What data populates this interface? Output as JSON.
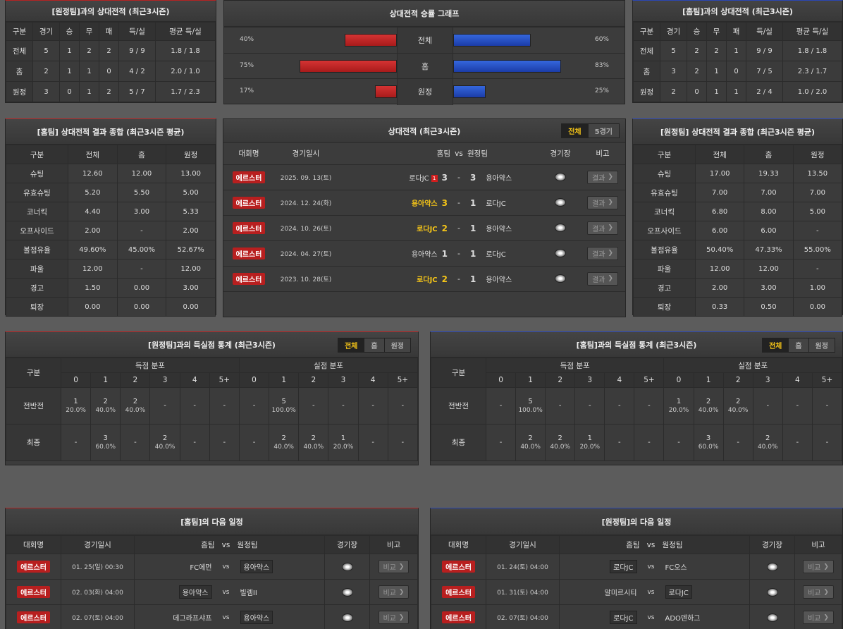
{
  "top_left": {
    "title": "[원정팀]과의 상대전적 (최근3시즌)",
    "headers": [
      "구분",
      "경기",
      "승",
      "무",
      "패",
      "득/실",
      "평균 득/실"
    ],
    "rows": [
      [
        "전체",
        "5",
        "1",
        "2",
        "2",
        "9 / 9",
        "1.8 / 1.8"
      ],
      [
        "홈",
        "2",
        "1",
        "1",
        "0",
        "4 / 2",
        "2.0 / 1.0"
      ],
      [
        "원정",
        "3",
        "0",
        "1",
        "2",
        "5 / 7",
        "1.7 / 2.3"
      ]
    ]
  },
  "graph": {
    "title": "상대전적 승률 그래프",
    "rows": [
      {
        "label": "전체",
        "left_pct": "40%",
        "right_pct": "60%",
        "left": 0.4,
        "right": 0.6
      },
      {
        "label": "홈",
        "left_pct": "75%",
        "right_pct": "83%",
        "left": 0.75,
        "right": 0.83
      },
      {
        "label": "원정",
        "left_pct": "17%",
        "right_pct": "25%",
        "left": 0.17,
        "right": 0.25
      }
    ]
  },
  "top_right": {
    "title": "[홈팀]과의 상대전적 (최근3시즌)",
    "headers": [
      "구분",
      "경기",
      "승",
      "무",
      "패",
      "득/실",
      "평균 득/실"
    ],
    "rows": [
      [
        "전체",
        "5",
        "2",
        "2",
        "1",
        "9 / 9",
        "1.8 / 1.8"
      ],
      [
        "홈",
        "3",
        "2",
        "1",
        "0",
        "7 / 5",
        "2.3 / 1.7"
      ],
      [
        "원정",
        "2",
        "0",
        "1",
        "1",
        "2 / 4",
        "1.0 / 2.0"
      ]
    ]
  },
  "mid_left": {
    "title": "[홈팀] 상대전적 결과 종합 (최근3시즌 평균)",
    "headers": [
      "구분",
      "전체",
      "홈",
      "원정"
    ],
    "rows": [
      [
        "슈팅",
        "12.60",
        "12.00",
        "13.00"
      ],
      [
        "유효슈팅",
        "5.20",
        "5.50",
        "5.00"
      ],
      [
        "코너킥",
        "4.40",
        "3.00",
        "5.33"
      ],
      [
        "오프사이드",
        "2.00",
        "-",
        "2.00"
      ],
      [
        "볼점유율",
        "49.60%",
        "45.00%",
        "52.67%"
      ],
      [
        "파울",
        "12.00",
        "-",
        "12.00"
      ],
      [
        "경고",
        "1.50",
        "0.00",
        "3.00"
      ],
      [
        "퇴장",
        "0.00",
        "0.00",
        "0.00"
      ]
    ]
  },
  "mid_right": {
    "title": "[원정팀] 상대전적 결과 종합 (최근3시즌 평균)",
    "headers": [
      "구분",
      "전체",
      "홈",
      "원정"
    ],
    "rows": [
      [
        "슈팅",
        "17.00",
        "19.33",
        "13.50"
      ],
      [
        "유효슈팅",
        "7.00",
        "7.00",
        "7.00"
      ],
      [
        "코너킥",
        "6.80",
        "8.00",
        "5.00"
      ],
      [
        "오프사이드",
        "6.00",
        "6.00",
        "-"
      ],
      [
        "볼점유율",
        "50.40%",
        "47.33%",
        "55.00%"
      ],
      [
        "파울",
        "12.00",
        "12.00",
        "-"
      ],
      [
        "경고",
        "2.00",
        "3.00",
        "1.00"
      ],
      [
        "퇴장",
        "0.33",
        "0.50",
        "0.00"
      ]
    ]
  },
  "h2h": {
    "title": "상대전적 (최근3시즌)",
    "tabs": [
      "전체",
      "5경기"
    ],
    "headers": {
      "comp": "대회명",
      "date": "경기일시",
      "home": "홈팀",
      "vs": "vs",
      "away": "원정팀",
      "stadium": "경기장",
      "note": "비고"
    },
    "button": "결과",
    "rows": [
      {
        "comp": "에르스터",
        "date": "2025. 09. 13(토)",
        "home": "로다JC",
        "hs": "3",
        "sep": "-",
        "as": "3",
        "away": "용아약스",
        "card": "1",
        "hl": "none"
      },
      {
        "comp": "에르스터",
        "date": "2024. 12. 24(화)",
        "home": "용아약스",
        "hs": "3",
        "sep": "-",
        "as": "1",
        "away": "로다JC",
        "hl": "home"
      },
      {
        "comp": "에르스터",
        "date": "2024. 10. 26(토)",
        "home": "로다JC",
        "hs": "2",
        "sep": "-",
        "as": "1",
        "away": "용아약스",
        "hl": "home"
      },
      {
        "comp": "에르스터",
        "date": "2024. 04. 27(토)",
        "home": "용아약스",
        "hs": "1",
        "sep": "-",
        "as": "1",
        "away": "로다JC",
        "hl": "none"
      },
      {
        "comp": "에르스터",
        "date": "2023. 10. 28(토)",
        "home": "로다JC",
        "hs": "2",
        "sep": "-",
        "as": "1",
        "away": "용아약스",
        "hl": "home"
      }
    ]
  },
  "goals_left": {
    "title": "[원정팀]과의 득실점 통계 (최근3시즌)",
    "tabs": [
      "전체",
      "홈",
      "원정"
    ],
    "h_label": "구분",
    "h_scored": "득점 분포",
    "h_conceded": "실점 분포",
    "cols": [
      "0",
      "1",
      "2",
      "3",
      "4",
      "5+",
      "0",
      "1",
      "2",
      "3",
      "4",
      "5+"
    ],
    "rows": [
      {
        "label": "전반전",
        "cells": [
          [
            "1",
            "20.0%"
          ],
          [
            "2",
            "40.0%"
          ],
          [
            "2",
            "40.0%"
          ],
          [
            "-",
            ""
          ],
          [
            "-",
            ""
          ],
          [
            "-",
            ""
          ],
          [
            "-",
            ""
          ],
          [
            "5",
            "100.0%"
          ],
          [
            "-",
            ""
          ],
          [
            "-",
            ""
          ],
          [
            "-",
            ""
          ],
          [
            "-",
            ""
          ]
        ]
      },
      {
        "label": "최종",
        "cells": [
          [
            "-",
            ""
          ],
          [
            "3",
            "60.0%"
          ],
          [
            "-",
            ""
          ],
          [
            "2",
            "40.0%"
          ],
          [
            "-",
            ""
          ],
          [
            "-",
            ""
          ],
          [
            "-",
            ""
          ],
          [
            "2",
            "40.0%"
          ],
          [
            "2",
            "40.0%"
          ],
          [
            "1",
            "20.0%"
          ],
          [
            "-",
            ""
          ],
          [
            "-",
            ""
          ]
        ]
      }
    ]
  },
  "goals_right": {
    "title": "[홈팀]과의 득실점 통계 (최근3시즌)",
    "tabs": [
      "전체",
      "홈",
      "원정"
    ],
    "h_label": "구분",
    "h_scored": "득점 분포",
    "h_conceded": "실점 분포",
    "cols": [
      "0",
      "1",
      "2",
      "3",
      "4",
      "5+",
      "0",
      "1",
      "2",
      "3",
      "4",
      "5+"
    ],
    "rows": [
      {
        "label": "전반전",
        "cells": [
          [
            "-",
            ""
          ],
          [
            "5",
            "100.0%"
          ],
          [
            "-",
            ""
          ],
          [
            "-",
            ""
          ],
          [
            "-",
            ""
          ],
          [
            "-",
            ""
          ],
          [
            "1",
            "20.0%"
          ],
          [
            "2",
            "40.0%"
          ],
          [
            "2",
            "40.0%"
          ],
          [
            "-",
            ""
          ],
          [
            "-",
            ""
          ],
          [
            "-",
            ""
          ]
        ]
      },
      {
        "label": "최종",
        "cells": [
          [
            "-",
            ""
          ],
          [
            "2",
            "40.0%"
          ],
          [
            "2",
            "40.0%"
          ],
          [
            "1",
            "20.0%"
          ],
          [
            "-",
            ""
          ],
          [
            "-",
            ""
          ],
          [
            "-",
            ""
          ],
          [
            "3",
            "60.0%"
          ],
          [
            "-",
            ""
          ],
          [
            "2",
            "40.0%"
          ],
          [
            "-",
            ""
          ],
          [
            "-",
            ""
          ]
        ]
      }
    ]
  },
  "sched_left": {
    "title": "[홈팀]의 다음 일정",
    "headers": {
      "comp": "대회명",
      "date": "경기일시",
      "home": "홈팀",
      "vs": "vs",
      "away": "원정팀",
      "stadium": "경기장",
      "note": "비고"
    },
    "button": "비교",
    "rows": [
      {
        "comp": "에르스터",
        "date": "01. 25(일) 00:30",
        "home": "FC에먼",
        "away": "용아약스",
        "box": "away"
      },
      {
        "comp": "에르스터",
        "date": "02. 03(화) 04:00",
        "home": "용아약스",
        "away": "빌렘II",
        "box": "home"
      },
      {
        "comp": "에르스터",
        "date": "02. 07(토) 04:00",
        "home": "데그라프샤프",
        "away": "용아약스",
        "box": "away"
      }
    ]
  },
  "sched_right": {
    "title": "[원정팀]의 다음 일정",
    "headers": {
      "comp": "대회명",
      "date": "경기일시",
      "home": "홈팀",
      "vs": "vs",
      "away": "원정팀",
      "stadium": "경기장",
      "note": "비고"
    },
    "button": "비교",
    "rows": [
      {
        "comp": "에르스터",
        "date": "01. 24(토) 04:00",
        "home": "로다JC",
        "away": "FC오스",
        "box": "home"
      },
      {
        "comp": "에르스터",
        "date": "01. 31(토) 04:00",
        "home": "알미르시티",
        "away": "로다JC",
        "box": "away"
      },
      {
        "comp": "에르스터",
        "date": "02. 07(토) 04:00",
        "home": "로다JC",
        "away": "ADO덴하그",
        "box": "home"
      }
    ]
  }
}
